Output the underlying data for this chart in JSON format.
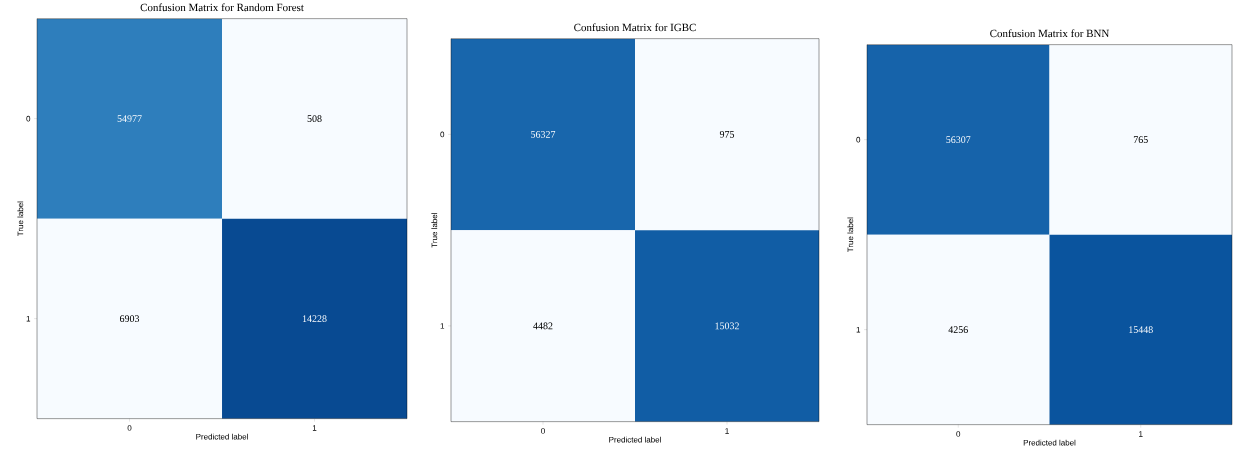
{
  "chart_data": [
    {
      "type": "heatmap",
      "title": "Confusion Matrix for Random Forest",
      "xlabel": "Predicted label",
      "ylabel": "True label",
      "categories": [
        "0",
        "1"
      ],
      "y_categories": [
        "0",
        "1"
      ],
      "cells": [
        [
          54977,
          508
        ],
        [
          6903,
          14228
        ]
      ],
      "data_labels": true
    },
    {
      "type": "heatmap",
      "title": "Confusion Matrix for IGBC",
      "xlabel": "Predicted label",
      "ylabel": "True label",
      "categories": [
        "0",
        "1"
      ],
      "y_categories": [
        "0",
        "1"
      ],
      "cells": [
        [
          56327,
          975
        ],
        [
          4482,
          15032
        ]
      ],
      "data_labels": true
    },
    {
      "type": "heatmap",
      "title": "Confusion Matrix for BNN",
      "xlabel": "Predicted label",
      "ylabel": "True label",
      "categories": [
        "0",
        "1"
      ],
      "y_categories": [
        "0",
        "1"
      ],
      "cells": [
        [
          56307,
          765
        ],
        [
          4256,
          15448
        ]
      ],
      "data_labels": true
    }
  ]
}
